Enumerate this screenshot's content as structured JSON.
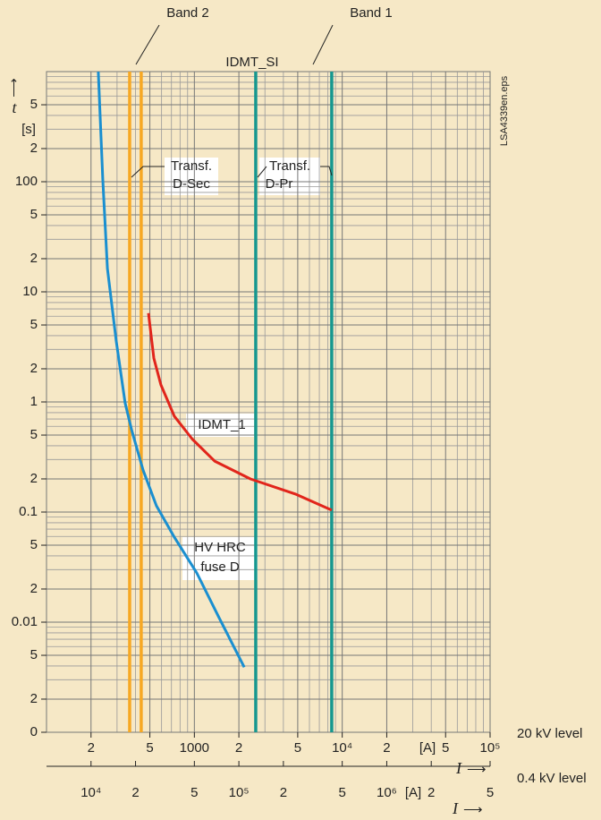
{
  "chart_data": {
    "type": "line",
    "xlim": [
      100,
      100000
    ],
    "xscale": "log",
    "xticks": [
      {
        "value": 200,
        "label": "2"
      },
      {
        "value": 500,
        "label": "5"
      },
      1000,
      {
        "value": 2000,
        "label": "2"
      },
      {
        "value": 5000,
        "label": "5"
      },
      {
        "value": 10000,
        "label": "10⁴"
      },
      {
        "value": 20000,
        "label": "2"
      },
      {
        "value": 50000,
        "label": "5"
      },
      {
        "value": 100000,
        "label": "10⁵"
      }
    ],
    "xminor": [
      300,
      400,
      600,
      700,
      800,
      900,
      3000,
      4000,
      6000,
      7000,
      8000,
      9000,
      30000,
      40000,
      60000,
      70000,
      80000,
      90000
    ],
    "x_unit": "[A]",
    "x_label": "I",
    "x_arrow": "⟶",
    "x_level": "20 kV level",
    "x2lim": [
      5000,
      5000000
    ],
    "x2ticks": [
      {
        "value": 10000,
        "label": "10⁴"
      },
      {
        "value": 20000,
        "label": "2"
      },
      {
        "value": 50000,
        "label": "5"
      },
      {
        "value": 100000,
        "label": "10⁵"
      },
      {
        "value": 200000,
        "label": "2"
      },
      {
        "value": 500000,
        "label": "5"
      },
      {
        "value": 1000000,
        "label": "10⁶"
      },
      {
        "value": 2000000,
        "label": "2"
      },
      {
        "value": 5000000,
        "label": "5"
      }
    ],
    "x2_unit": "[A]",
    "x2_label": "I",
    "x2_arrow": "⟶",
    "x2_level": "0.4 kV level",
    "ylim": [
      0.001,
      1000
    ],
    "yscale": "log",
    "yticks": [
      {
        "value": 500,
        "label": "5"
      },
      {
        "value": 200,
        "label": "2"
      },
      100,
      {
        "value": 50,
        "label": "5"
      },
      {
        "value": 20,
        "label": "2"
      },
      10,
      5,
      2,
      1,
      {
        "value": 0.5,
        "label": "5"
      },
      {
        "value": 0.2,
        "label": "2"
      },
      0.1,
      {
        "value": 0.05,
        "label": "5"
      },
      {
        "value": 0.02,
        "label": "2"
      },
      0.01,
      {
        "value": 0.005,
        "label": "5"
      },
      {
        "value": 0.002,
        "label": "2"
      },
      {
        "value": 0.001,
        "label": "0"
      }
    ],
    "yminor": [
      900,
      800,
      700,
      600,
      400,
      300,
      90,
      80,
      70,
      60,
      40,
      30,
      9,
      8,
      7,
      6,
      4,
      3,
      0.9,
      0.8,
      0.7,
      0.6,
      0.4,
      0.3,
      0.09,
      0.08,
      0.07,
      0.06,
      0.04,
      0.03,
      0.009,
      0.008,
      0.007,
      0.006,
      0.004,
      0.003
    ],
    "y_label": "t",
    "y_arrow": "⟶",
    "y_unit": "[s]",
    "grid": true,
    "series": [
      {
        "color": "#1a8fd0",
        "x": [
          224,
          240,
          258,
          296,
          340,
          376,
          450,
          554,
          733,
          1038,
          1469,
          2173
        ],
        "values": [
          1000,
          106,
          16.3,
          3.6,
          0.98,
          0.56,
          0.24,
          0.114,
          0.059,
          0.028,
          0.011,
          0.0039
        ]
      },
      {
        "color": "#e1251b",
        "x": [
          489,
          532,
          594,
          733,
          968,
          1371,
          2393,
          4800,
          8490
        ],
        "values": [
          6.4,
          2.5,
          1.43,
          0.74,
          0.46,
          0.29,
          0.2,
          0.146,
          0.104
        ]
      }
    ],
    "vlines": [
      {
        "value": 365,
        "color": "#f7a823"
      },
      {
        "value": 437,
        "color": "#f7a823"
      },
      {
        "value": 2600,
        "color": "#16978f"
      },
      {
        "value": 8490,
        "color": "#16978f"
      }
    ],
    "annotations": [
      "Band 2",
      "Band 1",
      "IDMT_SI",
      "Transf.",
      "D-Sec",
      "Transf.",
      "D-Pr",
      "IDMT_1",
      "HV HRC",
      "fuse D",
      "LSA4339en.eps"
    ]
  }
}
